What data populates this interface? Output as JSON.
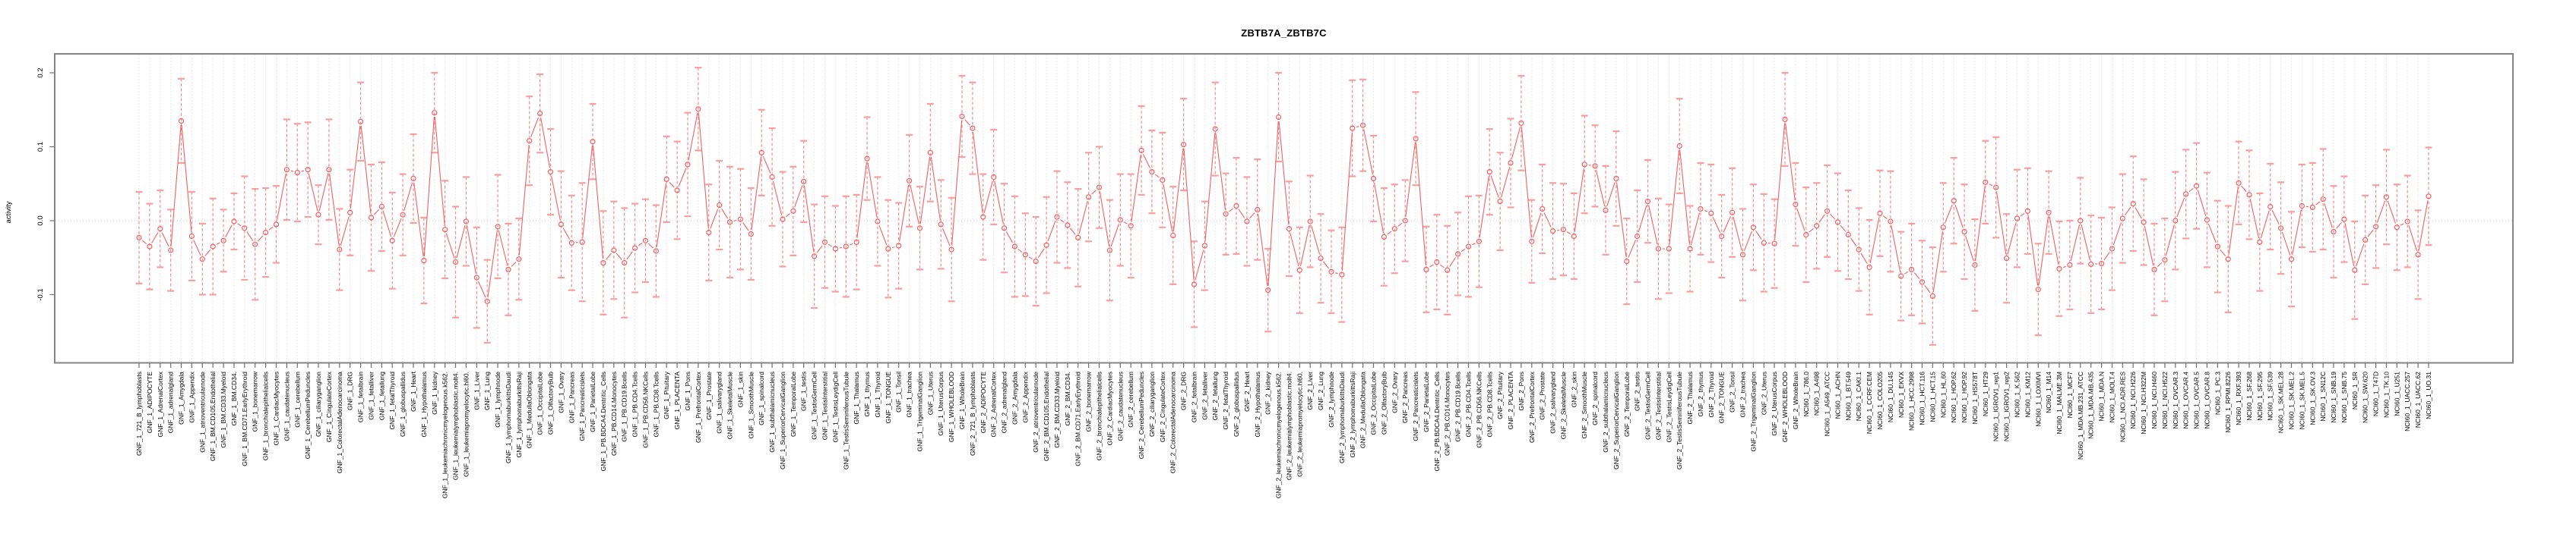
{
  "title": "ZBTB7A_ZBTB7C",
  "colors": {
    "series": "#f26060",
    "error_bar": "#f58a8a",
    "error_cap": "#f79f9f",
    "grid": "#d4d4d4",
    "zero_line": "#c9c9c9",
    "box_border": "#848484",
    "tick": "#6e6e6e",
    "text": "#000000"
  },
  "chart_data": {
    "type": "line",
    "title": "ZBTB7A_ZBTB7C",
    "xlabel": "",
    "ylabel": "activity",
    "ylim": [
      -0.19,
      0.225
    ],
    "y_ticks": [
      0.2,
      0.1,
      0.0,
      -0.1
    ],
    "y_tick_labels": [
      "0.2",
      "0.1",
      "0.0",
      "-0.1"
    ],
    "grid": "vertical dotted line per category; horizontal dotted line at y=0",
    "marker": "open-circle",
    "error_bars": true,
    "legend": "none",
    "categories": [
      "GNF_1_721_B_lymphoblasts",
      "GNF_1_ADIPOCYTE",
      "GNF_1_AdrenalCortex",
      "GNF_1_adrenalgland",
      "GNF_1_Amygdala",
      "GNF_1_Appendix",
      "GNF_1_atrioventricularnode",
      "GNF_1_BM.CD105.Endothelial",
      "GNF_1_BM.CD33.Myeloid",
      "GNF_1_BM.CD34.",
      "GNF_1_BM.CD71.EarlyErythroid",
      "GNF_1_bonemarrow",
      "GNF_1_bronchialepithelialcells",
      "GNF_1_CardiacMyocytes",
      "GNF_1_caudatenucleus",
      "GNF_1_cerebellum",
      "GNF_1_CerebellumPeduncles",
      "GNF_1_ciliaryganglion",
      "GNF_1_CingulateCortex",
      "GNF_1_ColorectalAdenocarcinoma",
      "GNF_1_DRG",
      "GNF_1_fetalbrain",
      "GNF_1_fetalliver",
      "GNF_1_fetallung",
      "GNF_1_fetalThyroid",
      "GNF_1_globuspallidus",
      "GNF_1_Heart",
      "GNF_1_Hypothalamus",
      "GNF_1_kidney",
      "GNF_1_leukemiachronicmyelogenous.k562.",
      "GNF_1_leukemialymphoblastic.molt4.",
      "GNF_1_leukemiapromyelocytic.hl60.",
      "GNF_1_Liver",
      "GNF_1_Lung",
      "GNF_1_lymphnode",
      "GNF_1_lymphomaburkittsDaudi",
      "GNF_1_lymphomaburkittsRaji",
      "GNF_1_MedullaOblongata",
      "GNF_1_OccipitalLobe",
      "GNF_1_OlfactoryBulb",
      "GNF_1_Ovary",
      "GNF_1_Pancreas",
      "GNF_1_Pancreaticislets",
      "GNF_1_ParietalLobe",
      "GNF_1_PB.BDCA4.Dentritic_Cells",
      "GNF_1_PB.CD14.Monocytes",
      "GNF_1_PB.CD19.Bcells",
      "GNF_1_PB.CD4.Tcells",
      "GNF_1_PB.CD56.NKCells",
      "GNF_1_PB.CD8.Tcells",
      "GNF_1_Pituitary",
      "GNF_1_PLACENTA",
      "GNF_1_Pons",
      "GNF_1_PrefrontalCortex",
      "GNF_1_Prostate",
      "GNF_1_salivarygland",
      "GNF_1_SkeletalMuscle",
      "GNF_1_skin",
      "GNF_1_SmoothMuscle",
      "GNF_1_spinalcord",
      "GNF_1_subthalamicnucleus",
      "GNF_1_SuperiorCervicalGanglion",
      "GNF_1_TemporalLobe",
      "GNF_1_testis",
      "GNF_1_TestisGermCell",
      "GNF_1_TestisInterstitial",
      "GNF_1_TestisLeydigCell",
      "GNF_1_TestisSeminiferousTubule",
      "GNF_1_Thalamus",
      "GNF_1_thymus",
      "GNF_1_Thyroid",
      "GNF_1_TONGUE",
      "GNF_1_Tonsil",
      "GNF_1_trachea",
      "GNF_1_TrigeminalGanglion",
      "GNF_1_Uterus",
      "GNF_1_UterusCorpus",
      "GNF_1_WHOLEBLOOD",
      "GNF_1_WholeBrain",
      "GNF_2_721_B_lymphoblasts",
      "GNF_2_ADIPOCYTE",
      "GNF_2_AdrenalCortex",
      "GNF_2_adrenalgland",
      "GNF_2_Amygdala",
      "GNF_2_Appendix",
      "GNF_2_atrioventricularnode",
      "GNF_2_BM.CD105.Endothelial",
      "GNF_2_BM.CD33.Myeloid",
      "GNF_2_BM.CD34.",
      "GNF_2_BM.CD71.EarlyErythroid",
      "GNF_2_bonemarrow",
      "GNF_2_bronchialepithelialcells",
      "GNF_2_CardiacMyocytes",
      "GNF_2_caudatenucleus",
      "GNF_2_cerebellum",
      "GNF_2_CerebellumPeduncles",
      "GNF_2_ciliaryganglion",
      "GNF_2_CingulateCortex",
      "GNF_2_ColorectalAdenocarcinoma",
      "GNF_2_DRG",
      "GNF_2_fetalbrain",
      "GNF_2_fetalliver",
      "GNF_2_fetallung",
      "GNF_2_fetalThyroid",
      "GNF_2_globuspallidus",
      "GNF_2_Heart",
      "GNF_2_Hypothalamus",
      "GNF_2_kidney",
      "GNF_2_leukemiachronicmyelogenous.k562.",
      "GNF_2_leukemialymphoblastic.molt4.",
      "GNF_2_leukemiapromyelocytic.hl60.",
      "GNF_2_Liver",
      "GNF_2_Lung",
      "GNF_2_lymphnode",
      "GNF_2_lymphomaburkittsDaudi",
      "GNF_2_lymphomaburkittsRaji",
      "GNF_2_MedullaOblongata",
      "GNF_2_OccipitalLobe",
      "GNF_2_OlfactoryBulb",
      "GNF_2_Ovary",
      "GNF_2_Pancreas",
      "GNF_2_Pancreaticislets",
      "GNF_2_ParietalLobe",
      "GNF_2_PB.BDCA4.Dentritic_Cells",
      "GNF_2_PB.CD14.Monocytes",
      "GNF_2_PB.CD19.Bcells",
      "GNF_2_PB.CD4.Tcells",
      "GNF_2_PB.CD56.NKCells",
      "GNF_2_PB.CD8.Tcells",
      "GNF_2_Pituitary",
      "GNF_2_PLACENTA",
      "GNF_2_Pons",
      "GNF_2_PrefrontalCortex",
      "GNF_2_Prostate",
      "GNF_2_salivarygland",
      "GNF_2_SkeletalMuscle",
      "GNF_2_skin",
      "GNF_2_SmoothMuscle",
      "GNF_2_spinalcord",
      "GNF_2_subthalamicnucleus",
      "GNF_2_SuperiorCervicalGanglion",
      "GNF_2_TemporalLobe",
      "GNF_2_testis",
      "GNF_2_TestisGermCell",
      "GNF_2_TestisInterstitial",
      "GNF_2_TestisLeydigCell",
      "GNF_2_TestisSeminiferousTubule",
      "GNF_2_Thalamus",
      "GNF_2_thymus",
      "GNF_2_Thyroid",
      "GNF_2_TONGUE",
      "GNF_2_Tonsil",
      "GNF_2_trachea",
      "GNF_2_TrigeminalGanglion",
      "GNF_2_Uterus",
      "GNF_2_UterusCorpus",
      "GNF_2_WHOLEBLOOD",
      "GNF_2_WholeBrain",
      "NCI60_1_786.0",
      "NCI60_1_A498",
      "NCI60_1_A549_ATCC",
      "NCI60_1_ACHN",
      "NCI60_1_BT.549",
      "NCI60_1_CAKI.1",
      "NCI60_1_CCRF.CEM",
      "NCI60_1_COLO205",
      "NCI60_1_DU.145",
      "NCI60_1_EKVX",
      "NCI60_1_HCC.2998",
      "NCI60_1_HCT.116",
      "NCI60_1_HCT.15",
      "NCI60_1_HL.60",
      "NCI60_1_HOP.62",
      "NCI60_1_HOP.92",
      "NCI60_1_HS578T",
      "NCI60_1_HT29",
      "NCI60_1_IGROV1_rep1",
      "NCI60_1_IGROV1_rep2",
      "NCI60_1_K.562",
      "NCI60_1_KM12",
      "NCI60_1_LOXIMVI",
      "NCI60_1_M14",
      "NCI60_1_MALME.3M",
      "NCI60_1_MCF7",
      "NCI60_1_MDA.MB.231_ATCC",
      "NCI60_1_MDA.MB.435",
      "NCI60_1_MDA.N",
      "NCI60_1_MOLT.4",
      "NCI60_1_NCI.ADR.RES",
      "NCI60_1_NCI.H226",
      "NCI60_1_NCI.H322M",
      "NCI60_1_NCI.H460",
      "NCI60_1_NCI.H522",
      "NCI60_1_OVCAR.3",
      "NCI60_1_OVCAR.4",
      "NCI60_1_OVCAR.5",
      "NCI60_1_OVCAR.8",
      "NCI60_1_PC.3",
      "NCI60_1_RPMI.8226",
      "NCI60_1_RXF.393",
      "NCI60_1_SF.268",
      "NCI60_1_SF.295",
      "NCI60_1_SF.539",
      "NCI60_1_SK.MEL.28",
      "NCI60_1_SK.MEL.2",
      "NCI60_1_SK.MEL.5",
      "NCI60_1_SK.OV.3",
      "NCI60_1_SN12C",
      "NCI60_1_SNB.19",
      "NCI60_1_SNB.75",
      "NCI60_1_SR",
      "NCI60_1_SW.620",
      "NCI60_1_T47D",
      "NCI60_1_TK.10",
      "NCI60_1_U251",
      "NCI60_1_UACC.257",
      "NCI60_1_UACC.62",
      "NCI60_1_UO.31"
    ],
    "values": [
      -0.023,
      -0.035,
      -0.011,
      -0.04,
      0.135,
      -0.021,
      -0.052,
      -0.035,
      -0.027,
      -0.001,
      -0.01,
      -0.032,
      -0.016,
      -0.005,
      0.069,
      0.065,
      0.069,
      0.008,
      0.069,
      -0.039,
      0.011,
      0.134,
      0.004,
      0.019,
      -0.027,
      0.008,
      0.057,
      -0.054,
      0.146,
      -0.012,
      -0.056,
      -0.001,
      -0.077,
      -0.109,
      -0.008,
      -0.066,
      -0.052,
      0.108,
      0.145,
      0.066,
      -0.005,
      -0.03,
      -0.029,
      0.107,
      -0.057,
      -0.04,
      -0.057,
      -0.037,
      -0.027,
      -0.041,
      0.056,
      0.041,
      0.076,
      0.151,
      -0.016,
      0.021,
      -0.002,
      0.002,
      -0.018,
      0.092,
      0.059,
      0.002,
      0.013,
      0.053,
      -0.048,
      -0.029,
      -0.038,
      -0.035,
      -0.029,
      0.084,
      -0.001,
      -0.038,
      -0.034,
      0.054,
      -0.01,
      0.092,
      -0.005,
      -0.039,
      0.141,
      0.125,
      0.005,
      0.059,
      -0.01,
      -0.035,
      -0.046,
      -0.055,
      -0.033,
      0.005,
      -0.006,
      -0.023,
      0.032,
      0.045,
      -0.04,
      0.001,
      -0.007,
      0.095,
      0.066,
      0.055,
      -0.02,
      0.103,
      -0.086,
      -0.034,
      0.124,
      0.009,
      0.02,
      -0.001,
      0.015,
      -0.094,
      0.14,
      -0.011,
      -0.067,
      -0.001,
      -0.051,
      -0.069,
      -0.073,
      0.125,
      0.129,
      0.057,
      -0.022,
      -0.011,
      0.0,
      0.111,
      -0.066,
      -0.056,
      -0.067,
      -0.045,
      -0.035,
      -0.028,
      0.066,
      0.026,
      0.078,
      0.132,
      -0.028,
      0.016,
      -0.014,
      -0.012,
      -0.021,
      0.076,
      0.074,
      0.014,
      0.057,
      -0.055,
      -0.021,
      0.026,
      -0.038,
      -0.038,
      0.101,
      -0.038,
      0.016,
      0.01,
      -0.021,
      0.011,
      -0.046,
      -0.009,
      -0.03,
      -0.031,
      0.137,
      0.022,
      -0.019,
      -0.007,
      0.013,
      -0.002,
      -0.019,
      -0.039,
      -0.063,
      0.01,
      -0.001,
      -0.075,
      -0.066,
      -0.083,
      -0.102,
      -0.009,
      0.027,
      -0.015,
      -0.06,
      0.052,
      0.045,
      -0.051,
      0.003,
      0.013,
      -0.093,
      0.011,
      -0.065,
      -0.06,
      0.0,
      -0.059,
      -0.058,
      -0.038,
      0.003,
      0.023,
      -0.002,
      -0.066,
      -0.053,
      0.0,
      0.036,
      0.047,
      0.001,
      -0.035,
      -0.052,
      0.051,
      0.035,
      -0.029,
      0.019,
      -0.01,
      -0.052,
      0.02,
      0.018,
      0.029,
      -0.015,
      0.002,
      -0.067,
      -0.026,
      -0.008,
      0.032,
      -0.009,
      -0.001,
      -0.046,
      0.033
    ],
    "ci_halfwidth": [
      0.062,
      0.058,
      0.052,
      0.055,
      0.057,
      0.06,
      0.048,
      0.065,
      0.042,
      0.038,
      0.07,
      0.075,
      0.06,
      0.052,
      0.068,
      0.066,
      0.064,
      0.04,
      0.068,
      0.055,
      0.058,
      0.053,
      0.072,
      0.06,
      0.065,
      0.055,
      0.06,
      0.058,
      0.054,
      0.066,
      0.075,
      0.06,
      0.068,
      0.056,
      0.07,
      0.062,
      0.055,
      0.06,
      0.053,
      0.058,
      0.072,
      0.064,
      0.08,
      0.051,
      0.07,
      0.066,
      0.074,
      0.06,
      0.056,
      0.062,
      0.058,
      0.066,
      0.07,
      0.056,
      0.065,
      0.06,
      0.075,
      0.068,
      0.062,
      0.058,
      0.066,
      0.064,
      0.06,
      0.055,
      0.07,
      0.062,
      0.058,
      0.068,
      0.064,
      0.056,
      0.06,
      0.066,
      0.058,
      0.062,
      0.056,
      0.066,
      0.06,
      0.07,
      0.055,
      0.062,
      0.058,
      0.064,
      0.06,
      0.068,
      0.056,
      0.06,
      0.065,
      0.062,
      0.058,
      0.066,
      0.06,
      0.055,
      0.068,
      0.062,
      0.07,
      0.06,
      0.056,
      0.064,
      0.066,
      0.062,
      0.058,
      0.06,
      0.063,
      0.055,
      0.065,
      0.06,
      0.068,
      0.056,
      0.06,
      0.064,
      0.058,
      0.062,
      0.06,
      0.056,
      0.064,
      0.065,
      0.062,
      0.058,
      0.066,
      0.06,
      0.055,
      0.063,
      0.058,
      0.064,
      0.06,
      0.056,
      0.068,
      0.062,
      0.058,
      0.066,
      0.06,
      0.064,
      0.056,
      0.06,
      0.065,
      0.062,
      0.058,
      0.066,
      0.055,
      0.06,
      0.064,
      0.058,
      0.062,
      0.056,
      0.068,
      0.06,
      0.064,
      0.058,
      0.062,
      0.066,
      0.056,
      0.06,
      0.062,
      0.058,
      0.066,
      0.06,
      0.063,
      0.056,
      0.064,
      0.058,
      0.062,
      0.066,
      0.06,
      0.056,
      0.064,
      0.058,
      0.068,
      0.06,
      0.062,
      0.056,
      0.066,
      0.06,
      0.058,
      0.064,
      0.062,
      0.056,
      0.068,
      0.06,
      0.066,
      0.058,
      0.062,
      0.056,
      0.064,
      0.06,
      0.058,
      0.066,
      0.062,
      0.056,
      0.06,
      0.064,
      0.058,
      0.062,
      0.056,
      0.066,
      0.06,
      0.058,
      0.064,
      0.062,
      0.072,
      0.056,
      0.06,
      0.066,
      0.058,
      0.062,
      0.064,
      0.056,
      0.06,
      0.068,
      0.062,
      0.058,
      0.066,
      0.06,
      0.056,
      0.064,
      0.058,
      0.062,
      0.06,
      0.066
    ]
  }
}
